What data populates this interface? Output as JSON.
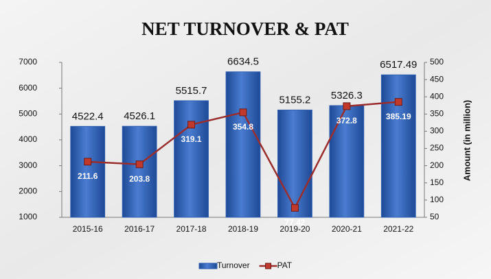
{
  "chart_data": {
    "type": "bar",
    "title": "NET TURNOVER & PAT",
    "categories": [
      "2015-16",
      "2016-17",
      "2017-18",
      "2018-19",
      "2019-20",
      "2020-21",
      "2021-22"
    ],
    "series": [
      {
        "name": "Turnover",
        "type": "bar",
        "color": "#2f5fb0",
        "values": [
          4522.4,
          4526.1,
          5515.7,
          6634.5,
          5155.2,
          5326.3,
          6517.49
        ]
      },
      {
        "name": "PAT",
        "type": "line",
        "axis": "y2",
        "color": "#9b2d2d",
        "values": [
          211.6,
          203.8,
          319.1,
          354.8,
          77.42,
          372.8,
          385.19
        ]
      }
    ],
    "ylim": [
      1000,
      7000
    ],
    "yticks": [
      1000,
      2000,
      3000,
      4000,
      5000,
      6000,
      7000
    ],
    "y2lim": [
      50,
      500
    ],
    "y2ticks": [
      50,
      100,
      150,
      200,
      250,
      300,
      350,
      400,
      450,
      500
    ],
    "y2label": "Amount (in million)",
    "legend": "bottom"
  }
}
